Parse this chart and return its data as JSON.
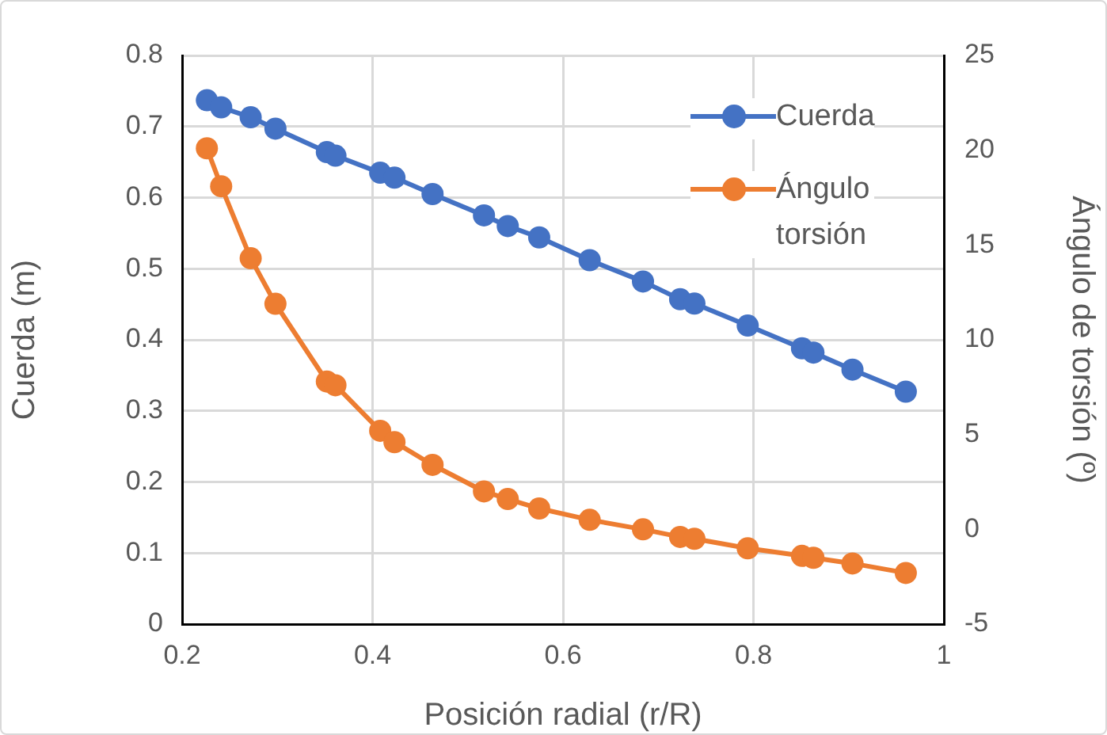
{
  "chart_data": {
    "type": "line",
    "xlabel": "Posición radial (r/R)",
    "ylabel": "Cuerda (m)",
    "y2label": "Ángulo de torsión (º)",
    "x": [
      0.226,
      0.241,
      0.272,
      0.298,
      0.352,
      0.361,
      0.408,
      0.423,
      0.463,
      0.517,
      0.542,
      0.575,
      0.628,
      0.684,
      0.723,
      0.738,
      0.794,
      0.851,
      0.863,
      0.904,
      0.96
    ],
    "series": [
      {
        "name": "Cuerda",
        "color": "#4472c4",
        "values": [
          0.737,
          0.727,
          0.713,
          0.697,
          0.664,
          0.659,
          0.635,
          0.628,
          0.605,
          0.575,
          0.56,
          0.544,
          0.512,
          0.482,
          0.457,
          0.451,
          0.42,
          0.388,
          0.382,
          0.358,
          0.327
        ]
      },
      {
        "name": "Ángulo\ntorsión",
        "color": "#ed7d31",
        "axis": "y2",
        "values": [
          20.1,
          18.1,
          14.3,
          11.9,
          7.8,
          7.6,
          5.2,
          4.6,
          3.4,
          2.0,
          1.6,
          1.1,
          0.5,
          0.0,
          -0.4,
          -0.5,
          -1.0,
          -1.4,
          -1.5,
          -1.8,
          -2.3
        ]
      }
    ],
    "xlim": [
      0.2,
      1
    ],
    "xticks": [
      0.2,
      0.4,
      0.6,
      0.8,
      1
    ],
    "ylim": [
      0,
      0.8
    ],
    "yticks": [
      0,
      0.1,
      0.2,
      0.3,
      0.4,
      0.5,
      0.6,
      0.7,
      0.8
    ],
    "y2lim": [
      -5,
      25
    ],
    "y2ticks": [
      -5,
      0,
      5,
      10,
      15,
      20,
      25
    ],
    "grid": true,
    "legend": "top right",
    "marker": "circle",
    "line_style": "solid"
  }
}
